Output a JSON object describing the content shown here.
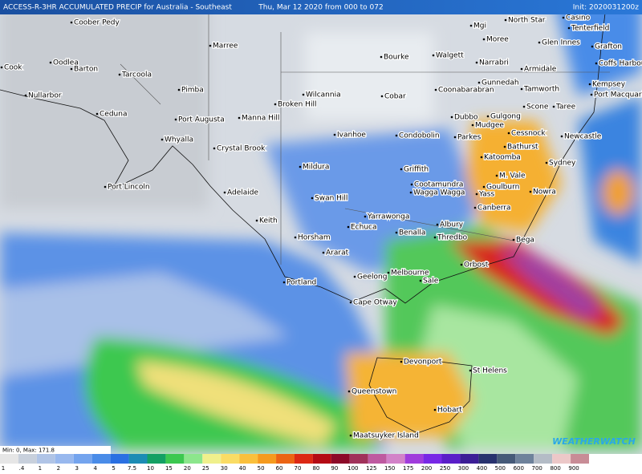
{
  "header": {
    "title": "ACCESS-R-3HR ACCUMULATED PRECIP for Australia - Southeast",
    "run": "Thu, Mar 12 2020 from 000 to 072",
    "init": "Init: 2020031200z"
  },
  "places": [
    "Coober Pedy",
    "Marree",
    "Cook",
    "Oodlea",
    "Barton",
    "Tarcoola",
    "Nullarbor",
    "Pimba",
    "Ceduna",
    "Port Augusta",
    "Whyalla",
    "Crystal Brook",
    "Port Lincoln",
    "Adelaide",
    "Keith",
    "Manna Hill",
    "Wilcannia",
    "Broken Hill",
    "Bourke",
    "Cobar",
    "Walgett",
    "Mgi",
    "Moree",
    "North Star",
    "Casino",
    "Tenterfield",
    "Glen Innes",
    "Grafton",
    "Coffs Harbour",
    "Narrabri",
    "Armidale",
    "Gunnedah",
    "Coonabarabran",
    "Tamworth",
    "Kempsey",
    "Port Macquarie",
    "Scone",
    "Taree",
    "Dubbo",
    "Gulgong",
    "Mudgee",
    "Cessnock",
    "Newcastle",
    "Bathurst",
    "Katoomba",
    "Sydney",
    "M. Vale",
    "Goulburn",
    "Yass",
    "Nowra",
    "Canberra",
    "Ivanhoe",
    "Condobolin",
    "Parkes",
    "Griffith",
    "Cootamundra",
    "Wagga Wagga",
    "Mildura",
    "Swan Hill",
    "Yarrawonga",
    "Echuca",
    "Albury",
    "Benalla",
    "Thredbo",
    "Horsham",
    "Ararat",
    "Bega",
    "Orbost",
    "Melbourne",
    "Geelong",
    "Sale",
    "Portland",
    "Cape Otway",
    "Devonport",
    "St Helens",
    "Queenstown",
    "Hobart",
    "Maatsuyker Island"
  ],
  "stats": "Min: 0, Max: 171.8",
  "logo": "WEATHERWATCH",
  "legend": {
    "values": [
      "1",
      ".4",
      "1",
      "2",
      "3",
      "4",
      "5",
      "7.5",
      "10",
      "15",
      "20",
      "25",
      "30",
      "40",
      "50",
      "60",
      "70",
      "80",
      "90",
      "100",
      "125",
      "150",
      "175",
      "200",
      "250",
      "300",
      "400",
      "500",
      "600",
      "700",
      "800",
      "900"
    ],
    "colors": [
      "#e6e6e6",
      "#c8d0dc",
      "#b0c4e6",
      "#98b8ee",
      "#74a4ee",
      "#4a8ce8",
      "#2a70e2",
      "#1c8cb4",
      "#14a064",
      "#3cc850",
      "#8ce68c",
      "#f0f08c",
      "#fadc64",
      "#fac03c",
      "#f59a1e",
      "#eb6414",
      "#dc2814",
      "#b40a14",
      "#8c0a28",
      "#a0325a",
      "#be5aa0",
      "#d282c8",
      "#a03cdc",
      "#7828e6",
      "#5a1ec8",
      "#3c1e96",
      "#28326e",
      "#465a78",
      "#6e829b",
      "#b4bcc6",
      "#ecc8c8",
      "#c88c96"
    ]
  }
}
